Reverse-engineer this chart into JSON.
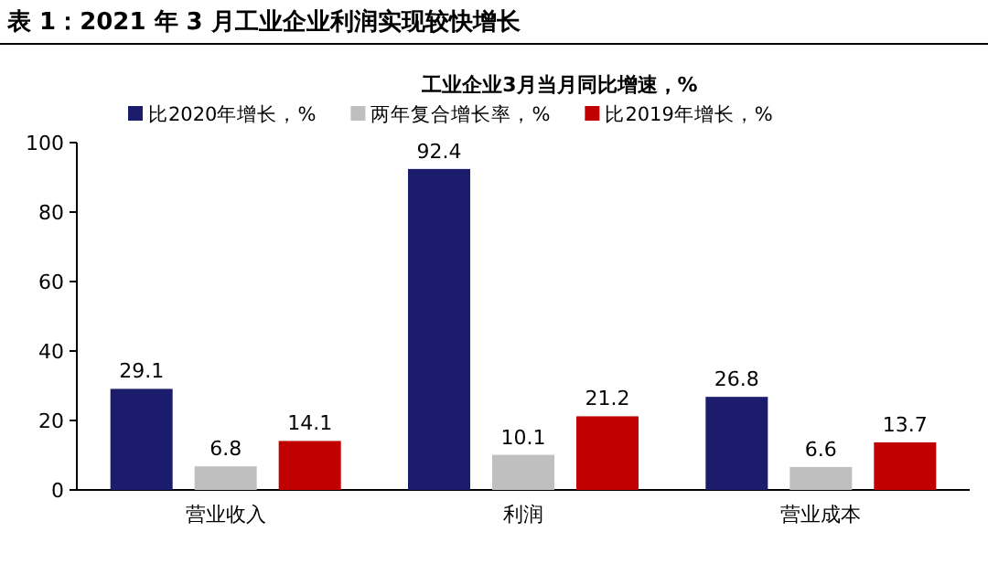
{
  "chart_data": {
    "type": "bar",
    "title": "表 1：2021 年 3 月工业企业利润实现较快增长",
    "subtitle": "工业企业3月当月同比增速，%",
    "categories": [
      "营业收入",
      "利润",
      "营业成本"
    ],
    "series": [
      {
        "name": "比2020年增长，%",
        "color": "#1c1c6c",
        "values": [
          29.1,
          92.4,
          26.8
        ]
      },
      {
        "name": "两年复合增长率，%",
        "color": "#bfbfbf",
        "values": [
          6.8,
          10.1,
          6.6
        ]
      },
      {
        "name": "比2019年增长，%",
        "color": "#c00000",
        "values": [
          14.1,
          21.2,
          13.7
        ]
      }
    ],
    "ylim": [
      0,
      100
    ],
    "yticks": [
      0,
      20,
      40,
      60,
      80,
      100
    ],
    "data_labels": true,
    "legend": "top"
  }
}
